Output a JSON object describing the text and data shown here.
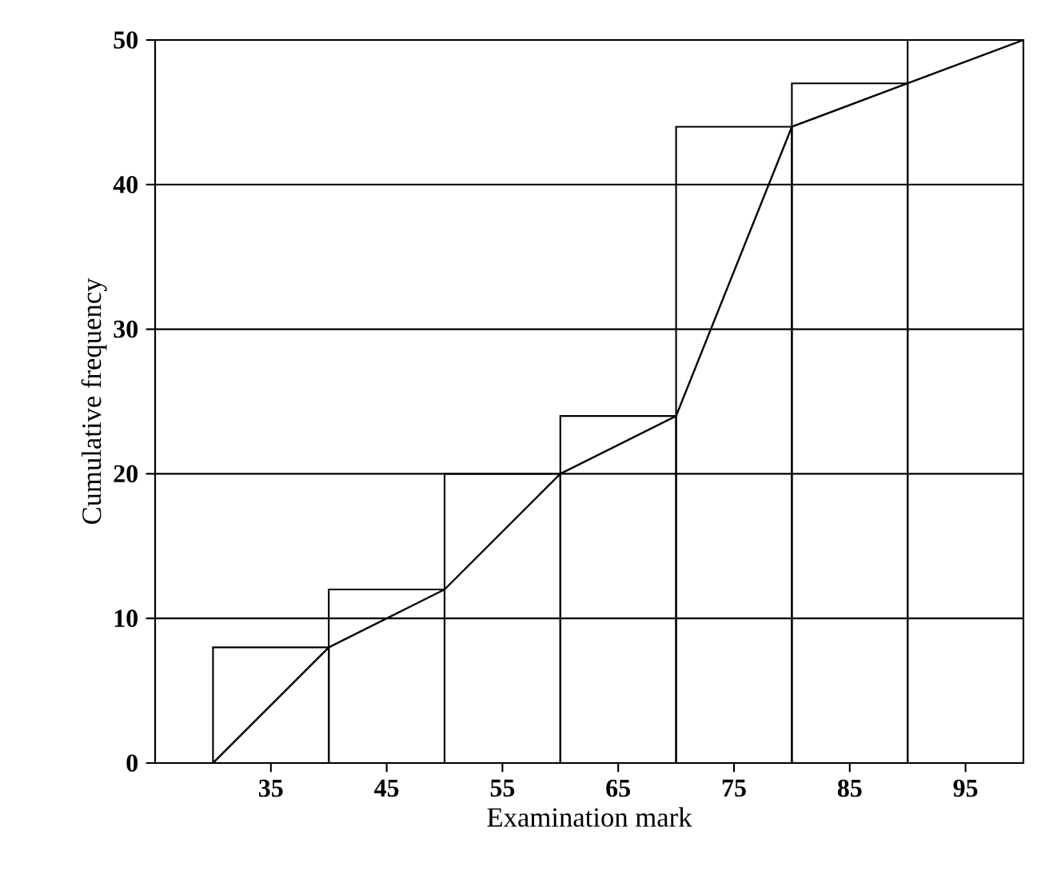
{
  "chart_data": {
    "type": "histogram",
    "xlabel": "Examination mark",
    "ylabel": "Cumulative frequency",
    "bins": [
      30,
      40,
      50,
      60,
      70,
      80,
      90,
      100
    ],
    "series": [
      {
        "color": "#000000",
        "values": [
          8,
          12,
          20,
          24,
          44,
          47,
          50
        ]
      },
      {
        "type": "line",
        "color": "#000000",
        "x": [
          30,
          40,
          50,
          60,
          70,
          80,
          90,
          100
        ],
        "values": [
          0,
          8,
          12,
          20,
          24,
          44,
          47,
          50
        ]
      }
    ],
    "xlim": [
      25,
      100
    ],
    "ylim": [
      0,
      50
    ],
    "xticks": [
      35,
      45,
      55,
      65,
      75,
      85,
      95
    ],
    "yticks": [
      0,
      10,
      20,
      30,
      40,
      50
    ],
    "grid": "y",
    "marker": "none",
    "line_style": "solid"
  }
}
